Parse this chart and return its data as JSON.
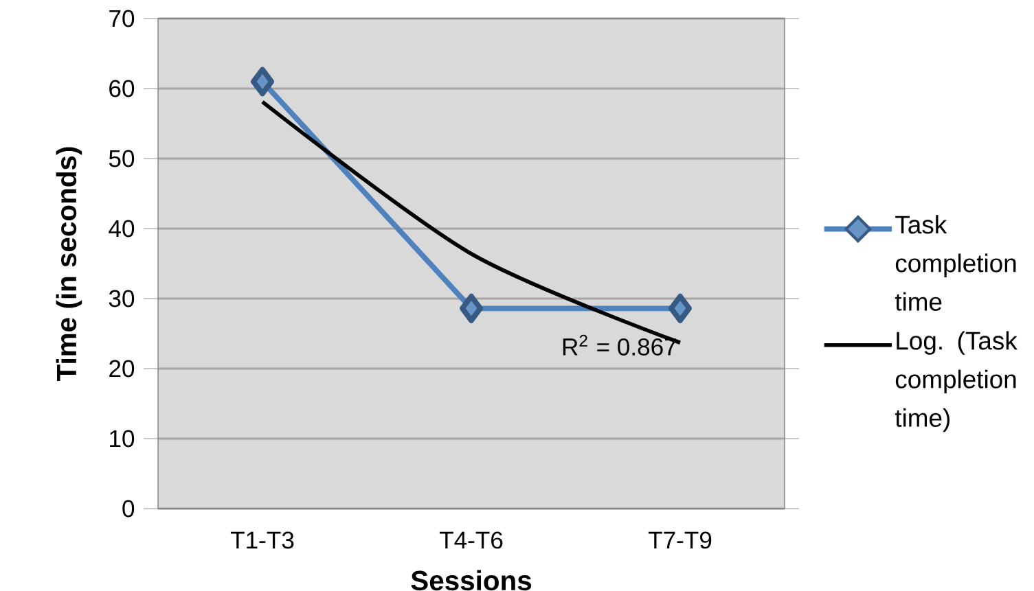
{
  "chart_data": {
    "type": "line",
    "xlabel": "Sessions",
    "ylabel": "Time (in seconds)",
    "categories": [
      "T1-T3",
      "T4-T6",
      "T7-T9"
    ],
    "series": [
      {
        "name": "Task completion time",
        "color": "#4f81bd",
        "values": [
          61,
          28.6,
          28.6
        ],
        "marker": "diamond"
      },
      {
        "name": "Log. (Task completion time)",
        "color": "#000000",
        "type": "line",
        "marker": "none",
        "values": [
          58.1,
          36.4,
          23.7
        ]
      }
    ],
    "annotations": [
      "R$^{2}$ = 0.867"
    ],
    "ylim": [
      0,
      70
    ],
    "yticks": [
      0,
      10,
      20,
      30,
      40,
      50,
      60,
      70
    ],
    "grid": "y",
    "legend": "right"
  }
}
